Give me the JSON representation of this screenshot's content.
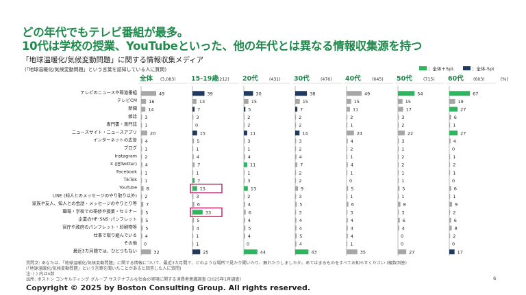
{
  "title_line1": "どの年代でもテレビ番組が最多。",
  "title_line2": "10代は学校の授業、YouTubeといった、他の年代とは異なる情報収集源を持つ",
  "subtitle": "「地球温暖化/気候変動問題」に関する情報収集メディア",
  "note": "(「地球温暖化/気候変動問題」という言葉を認知している人に質問)",
  "legend": {
    "above_label": "：全体＋5pt.",
    "below_label": "：全体-5pt",
    "above_color": "#2fb45f",
    "below_color": "#1f3a5f"
  },
  "chart_data": {
    "type": "bar",
    "orientation": "horizontal",
    "unit": "(%)",
    "categories": [
      "テレビのニュースや報道番組",
      "テレビCM",
      "新聞",
      "雑誌",
      "専門書・専門誌",
      "ニュースサイト・ニュースアプリ",
      "インターネットの広告",
      "ブログ",
      "Instagram",
      "X (旧Twitter)",
      "Facebook",
      "TikTok",
      "YouTube",
      "LINE (知人とのメッセージのやり取り以外)",
      "家族や友人、知人との会話・メッセージのやりとり等",
      "職場・学校での研修や授業・セミナー",
      "企業のHP･SNS･パンフレット",
      "官庁や政府のパンフレット・印刷物等",
      "仕事で取り組んでいる",
      "その他",
      "最近3カ月間では、ひとつもない"
    ],
    "series": [
      {
        "name": "全体",
        "n": "(3,083)",
        "values": [
          49,
          16,
          14,
          3,
          1,
          20,
          4,
          1,
          2,
          4,
          1,
          1,
          8,
          2,
          7,
          5,
          5,
          5,
          4,
          0,
          32
        ],
        "highlight": "none"
      },
      {
        "name": "15-19歳",
        "n": "(212)",
        "values": [
          39,
          13,
          7,
          3,
          0,
          15,
          5,
          1,
          4,
          7,
          1,
          7,
          15,
          3,
          6,
          33,
          5,
          4,
          1,
          1,
          25
        ],
        "highlight": [
          "below",
          "none",
          "below",
          "none",
          "none",
          "below",
          "none",
          "none",
          "none",
          "none",
          "none",
          "above",
          "above",
          "none",
          "none",
          "above",
          "none",
          "none",
          "none",
          "none",
          "below"
        ]
      },
      {
        "name": "20代",
        "n": "(431)",
        "values": [
          30,
          15,
          5,
          2,
          2,
          11,
          3,
          1,
          4,
          11,
          1,
          3,
          13,
          2,
          4,
          6,
          4,
          5,
          4,
          0,
          44
        ],
        "highlight": [
          "below",
          "none",
          "below",
          "none",
          "none",
          "below",
          "none",
          "none",
          "none",
          "above",
          "none",
          "none",
          "above",
          "none",
          "none",
          "none",
          "none",
          "none",
          "none",
          "none",
          "above"
        ]
      },
      {
        "name": "30代",
        "n": "(476)",
        "values": [
          38,
          15,
          7,
          2,
          2,
          14,
          3,
          2,
          4,
          7,
          2,
          2,
          9,
          3,
          5,
          3,
          4,
          4,
          5,
          4,
          43
        ],
        "highlight": [
          "below",
          "none",
          "below",
          "none",
          "none",
          "below",
          "none",
          "none",
          "none",
          "none",
          "none",
          "none",
          "none",
          "none",
          "none",
          "none",
          "none",
          "none",
          "none",
          "none",
          "above"
        ]
      },
      {
        "name": "40代",
        "n": "(645)",
        "values": [
          49,
          15,
          11,
          2,
          1,
          24,
          4,
          2,
          1,
          4,
          1,
          0,
          5,
          1,
          6,
          3,
          4,
          4,
          4,
          1,
          35
        ],
        "highlight": "none"
      },
      {
        "name": "50代",
        "n": "(715)",
        "values": [
          54,
          15,
          17,
          3,
          2,
          22,
          3,
          1,
          2,
          2,
          1,
          1,
          5,
          1,
          8,
          3,
          6,
          4,
          0,
          0,
          27
        ],
        "highlight": [
          "above",
          "none",
          "none",
          "none",
          "none",
          "none",
          "none",
          "none",
          "none",
          "none",
          "none",
          "none",
          "none",
          "none",
          "none",
          "none",
          "none",
          "none",
          "none",
          "none",
          "none"
        ]
      },
      {
        "name": "60代",
        "n": "(603)",
        "values": [
          67,
          19,
          27,
          6,
          1,
          27,
          4,
          0,
          1,
          2,
          1,
          0,
          6,
          1,
          9,
          2,
          6,
          8,
          2,
          0,
          17
        ],
        "highlight": [
          "above",
          "none",
          "above",
          "none",
          "none",
          "above",
          "none",
          "none",
          "none",
          "none",
          "none",
          "none",
          "none",
          "none",
          "none",
          "none",
          "none",
          "none",
          "none",
          "none",
          "below"
        ]
      }
    ],
    "boxed": [
      {
        "series": "15-19歳",
        "category": "YouTube"
      },
      {
        "series": "15-19歳",
        "category": "職場・学校での研修や授業・セミナー"
      }
    ],
    "colors": {
      "neutral": "#a6a6a6",
      "above": "#2fb45f",
      "below": "#1f3a5f",
      "box": "#c2185b",
      "header": "#1f8a4c"
    }
  },
  "footnotes": [
    "質問文: あなたは、「地球温暖化/気候変動問題」に関する情報について、最近3カ月間で、どのような場所で見たり聞いたり、触れたりしましたか。あてはまるものをすべてお知らせください (複数回答)",
    "(「地球温暖化/気候変動問題」という言葉を聞いたことがあると回答した人に質問)",
    "注: ( ) 内はn数",
    "出所: ボストン コンサルティング グループ サステナブルな社会の実現に関する消費者意識調査 (2025年1月調査)"
  ],
  "page_number": "6",
  "copyright": "Copyright © 2025 by Boston Consulting Group. All rights reserved."
}
